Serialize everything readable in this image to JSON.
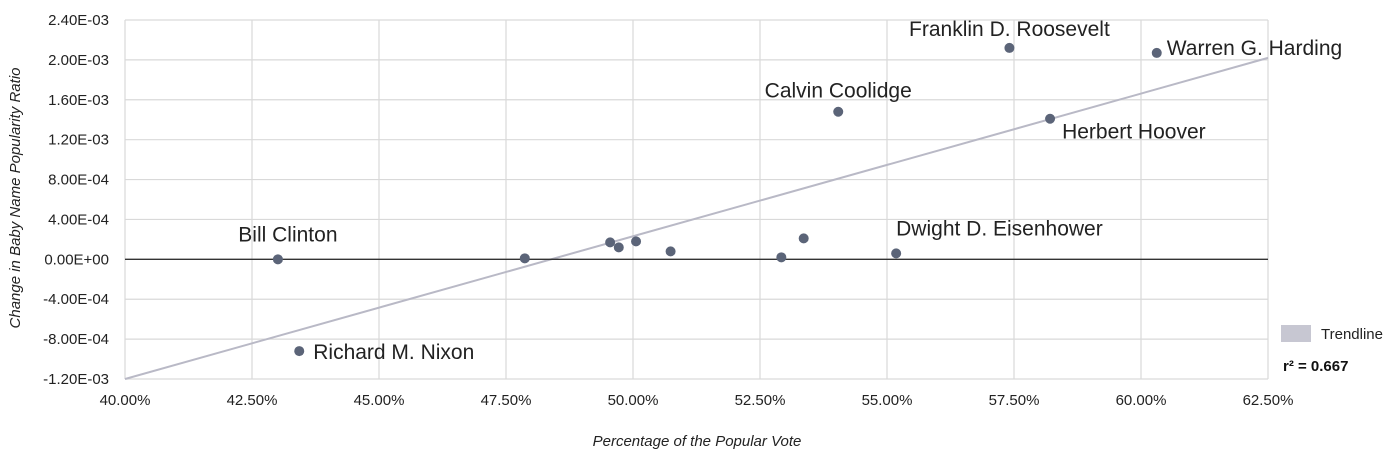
{
  "chart_data": {
    "type": "scatter",
    "title": "",
    "xlabel": "Percentage of the Popular Vote",
    "ylabel": "Change in Baby Name Popularity Ratio",
    "xlim": [
      0.4,
      0.625
    ],
    "ylim": [
      -0.0012,
      0.0024
    ],
    "x_ticks": [
      "40.00%",
      "42.50%",
      "45.00%",
      "47.50%",
      "50.00%",
      "52.50%",
      "55.00%",
      "57.50%",
      "60.00%",
      "62.50%"
    ],
    "y_ticks": [
      "2.40E-03",
      "2.00E-03",
      "1.60E-03",
      "1.20E-03",
      "8.00E-04",
      "4.00E-04",
      "0.00E+00",
      "-4.00E-04",
      "-8.00E-04",
      "-1.20E-03"
    ],
    "grid": true,
    "colors": {
      "points": "#5b6478",
      "trendline": "#b9b9c6",
      "grid": "#d9d9d9",
      "zero_line": "#333333"
    },
    "points": [
      {
        "x": 0.6031,
        "y": 0.00207,
        "label": "Warren G. Harding"
      },
      {
        "x": 0.5741,
        "y": 0.00212,
        "label": "Franklin D. Roosevelt"
      },
      {
        "x": 0.5821,
        "y": 0.00141,
        "label": "Herbert Hoover"
      },
      {
        "x": 0.5404,
        "y": 0.00148,
        "label": "Calvin Coolidge"
      },
      {
        "x": 0.5518,
        "y": 6e-05,
        "label": "Dwight D. Eisenhower"
      },
      {
        "x": 0.4301,
        "y": 0.0,
        "label": "Bill Clinton"
      },
      {
        "x": 0.4343,
        "y": -0.00092,
        "label": "Richard M. Nixon"
      },
      {
        "x": 0.4787,
        "y": 1e-05,
        "label": ""
      },
      {
        "x": 0.4955,
        "y": 0.00017,
        "label": ""
      },
      {
        "x": 0.4972,
        "y": 0.00012,
        "label": ""
      },
      {
        "x": 0.5006,
        "y": 0.00018,
        "label": ""
      },
      {
        "x": 0.5074,
        "y": 8e-05,
        "label": ""
      },
      {
        "x": 0.5292,
        "y": 2e-05,
        "label": ""
      },
      {
        "x": 0.5336,
        "y": 0.00021,
        "label": ""
      }
    ],
    "trendline": {
      "x": [
        0.4,
        0.625
      ],
      "y": [
        -0.0012,
        0.00202
      ]
    },
    "legend": {
      "label": "Trendline",
      "position": "right"
    },
    "r2_label": "r² = 0.667"
  }
}
